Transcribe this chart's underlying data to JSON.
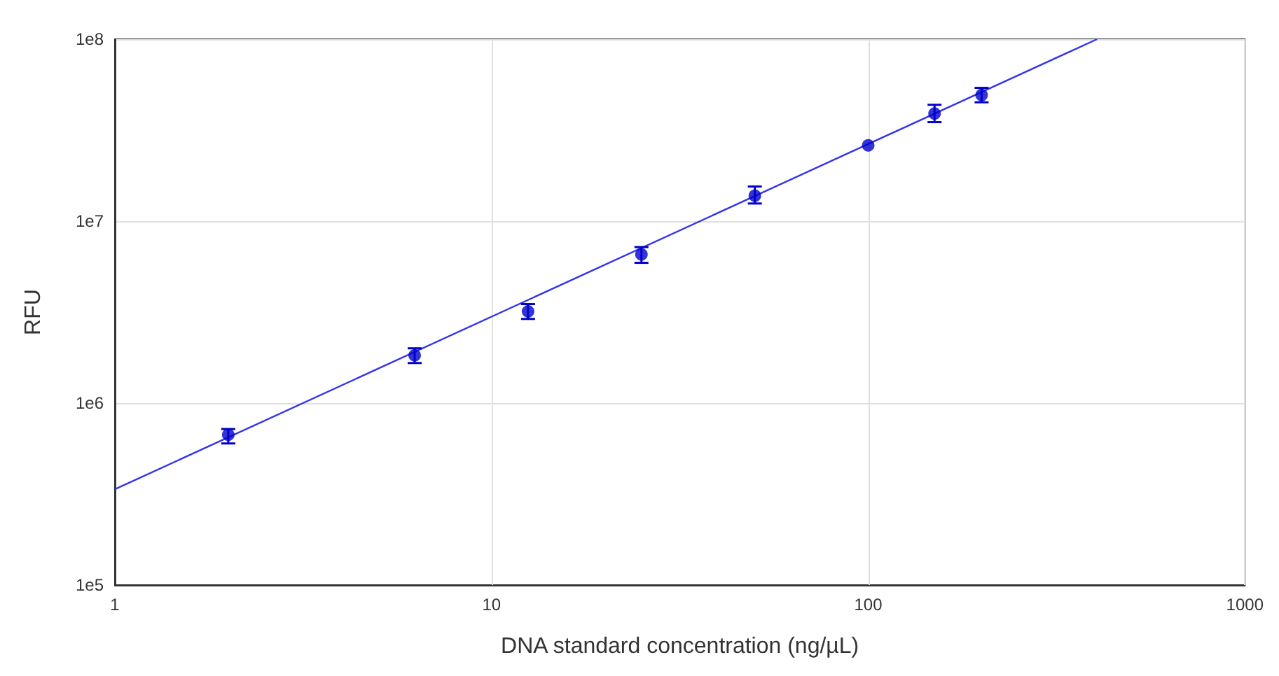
{
  "chart_data": {
    "type": "scatter",
    "xlabel": "DNA standard concentration (ng/µL)",
    "ylabel": "RFU",
    "log": "xy",
    "grid": true,
    "marker": "circle",
    "xlim": [
      1,
      1000
    ],
    "xticks": [
      1,
      10,
      100,
      1000
    ],
    "ylim": [
      100000,
      100000000
    ],
    "yticks": [
      {
        "value": 100000,
        "label": "1e5"
      },
      {
        "value": 1000000,
        "label": "1e6"
      },
      {
        "value": 10000000,
        "label": "1e7"
      },
      {
        "value": 100000000,
        "label": "1e8"
      }
    ],
    "series": [
      {
        "color": "#0000cc",
        "x": [
          2,
          6.25,
          12.5,
          25,
          50,
          100,
          150,
          200
        ],
        "values": [
          670000,
          1830000,
          3190000,
          6570000,
          13800000,
          26100000,
          39000000,
          49300000
        ],
        "errors": [
          [
            600000,
            720000
          ],
          [
            1660000,
            2000000
          ],
          [
            2900000,
            3500000
          ],
          [
            5900000,
            7200000
          ],
          [
            12500000,
            15500000
          ],
          null,
          [
            35000000,
            43600000
          ],
          [
            45000000,
            54000000
          ]
        ]
      },
      {
        "type": "line",
        "color": "#3333ee",
        "marker": "none",
        "x": [
          1,
          405
        ],
        "values": [
          336000,
          100000000
        ]
      }
    ]
  }
}
